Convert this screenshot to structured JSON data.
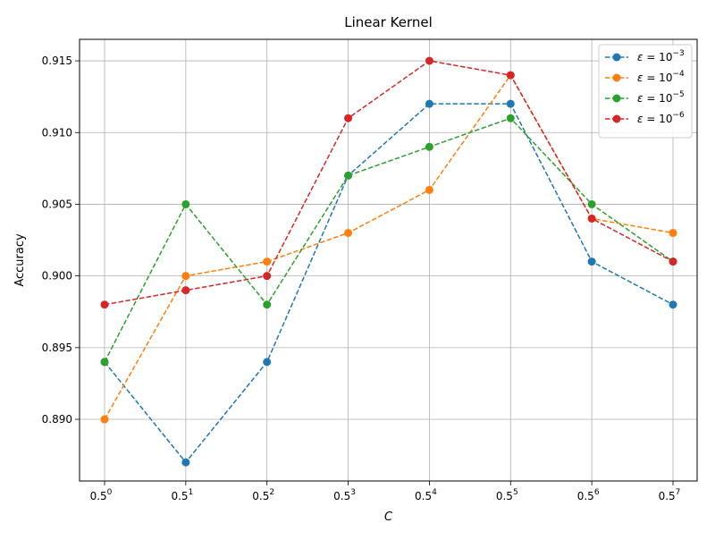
{
  "chart_data": {
    "type": "line",
    "title": "Linear Kernel",
    "xlabel": "C",
    "ylabel": "Accuracy",
    "x_tick_base": "0.5",
    "x_tick_exponents": [
      "0",
      "1",
      "2",
      "3",
      "4",
      "5",
      "6",
      "7"
    ],
    "ylim": [
      0.8857,
      0.9165
    ],
    "yticks": [
      "0.890",
      "0.895",
      "0.900",
      "0.905",
      "0.910",
      "0.915"
    ],
    "grid": true,
    "legend_position": "top-right",
    "series": [
      {
        "name_base": "10",
        "name_exp": "−3",
        "color": "#1f77b4",
        "values": [
          0.894,
          0.887,
          0.894,
          0.907,
          0.912,
          0.912,
          0.901,
          0.898
        ]
      },
      {
        "name_base": "10",
        "name_exp": "−4",
        "color": "#ff7f0e",
        "values": [
          0.89,
          0.9,
          0.901,
          0.903,
          0.906,
          0.914,
          0.904,
          0.903
        ]
      },
      {
        "name_base": "10",
        "name_exp": "−5",
        "color": "#2ca02c",
        "values": [
          0.894,
          0.905,
          0.898,
          0.907,
          0.909,
          0.911,
          0.905,
          0.901
        ]
      },
      {
        "name_base": "10",
        "name_exp": "−6",
        "color": "#d62728",
        "values": [
          0.898,
          0.899,
          0.9,
          0.911,
          0.915,
          0.914,
          0.904,
          0.901
        ]
      }
    ]
  }
}
